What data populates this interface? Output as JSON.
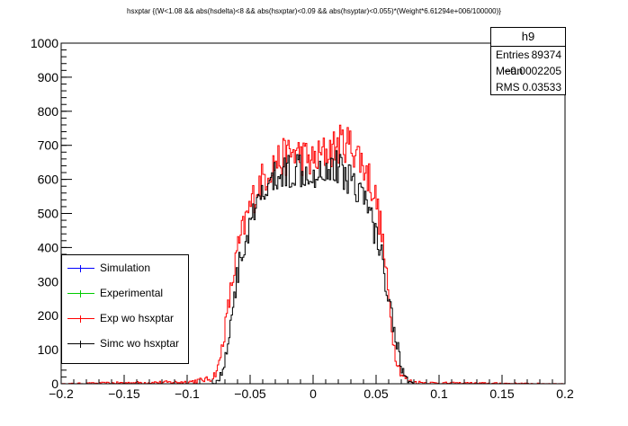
{
  "title": "hsxptar {(W<1.08 && abs(hsdelta)<8 && abs(hsxptar)<0.09 && abs(hsyptar)<0.055)*(Weight*6.61294e+006/100000)}",
  "stats": {
    "name": "h9",
    "rows": [
      {
        "label": "Entries",
        "value": "89374"
      },
      {
        "label": "Mean",
        "value": "−0.0002205"
      },
      {
        "label": "RMS",
        "value": "0.03533"
      }
    ]
  },
  "legend": [
    {
      "label": "Simulation",
      "color": "#0000ff"
    },
    {
      "label": "Experimental",
      "color": "#00cc00"
    },
    {
      "label": "Exp wo hsxptar",
      "color": "#ff0000"
    },
    {
      "label": "Simc wo hsxptar",
      "color": "#000000"
    }
  ],
  "chart_data": {
    "type": "line",
    "title": "hsxptar {(W<1.08 && abs(hsdelta)<8 && abs(hsxptar)<0.09 && abs(hsyptar)<0.055)*(Weight*6.61294e+006/100000)}",
    "xlabel": "",
    "ylabel": "",
    "xlim": [
      -0.2,
      0.2
    ],
    "ylim": [
      0,
      1000
    ],
    "xticks": [
      "−0.2",
      "−0.15",
      "−0.1",
      "−0.05",
      "0",
      "0.05",
      "0.1",
      "0.15",
      "0.2"
    ],
    "yticks": [
      "0",
      "100",
      "200",
      "300",
      "400",
      "500",
      "600",
      "700",
      "800",
      "900",
      "1000"
    ],
    "grid": false,
    "legend_position": "bottom-left",
    "series": [
      {
        "name": "Exp wo hsxptar",
        "color": "#ff0000",
        "x": [
          -0.2,
          -0.1,
          -0.09,
          -0.08,
          -0.075,
          -0.07,
          -0.065,
          -0.06,
          -0.055,
          -0.05,
          -0.045,
          -0.04,
          -0.035,
          -0.03,
          -0.025,
          -0.02,
          -0.015,
          -0.01,
          -0.005,
          0,
          0.005,
          0.01,
          0.015,
          0.02,
          0.025,
          0.03,
          0.035,
          0.04,
          0.045,
          0.05,
          0.055,
          0.06,
          0.065,
          0.07,
          0.075,
          0.08,
          0.09,
          0.1,
          0.2
        ],
        "y": [
          0,
          5,
          10,
          15,
          50,
          160,
          280,
          390,
          460,
          520,
          570,
          600,
          630,
          650,
          660,
          670,
          680,
          670,
          660,
          650,
          665,
          680,
          690,
          700,
          710,
          700,
          680,
          640,
          600,
          540,
          430,
          250,
          90,
          30,
          10,
          5,
          3,
          2,
          0
        ]
      },
      {
        "name": "Simc wo hsxptar",
        "color": "#000000",
        "x": [
          -0.2,
          -0.08,
          -0.075,
          -0.07,
          -0.065,
          -0.06,
          -0.055,
          -0.05,
          -0.045,
          -0.04,
          -0.035,
          -0.03,
          -0.025,
          -0.02,
          -0.015,
          -0.01,
          -0.005,
          0,
          0.005,
          0.01,
          0.015,
          0.02,
          0.025,
          0.03,
          0.035,
          0.04,
          0.045,
          0.05,
          0.055,
          0.06,
          0.065,
          0.07,
          0.075,
          0.08,
          0.2
        ],
        "y": [
          0,
          0,
          10,
          60,
          200,
          320,
          400,
          460,
          510,
          550,
          580,
          600,
          615,
          625,
          630,
          635,
          630,
          625,
          630,
          635,
          640,
          630,
          620,
          605,
          585,
          550,
          500,
          440,
          360,
          260,
          150,
          50,
          10,
          0,
          0
        ]
      }
    ]
  }
}
